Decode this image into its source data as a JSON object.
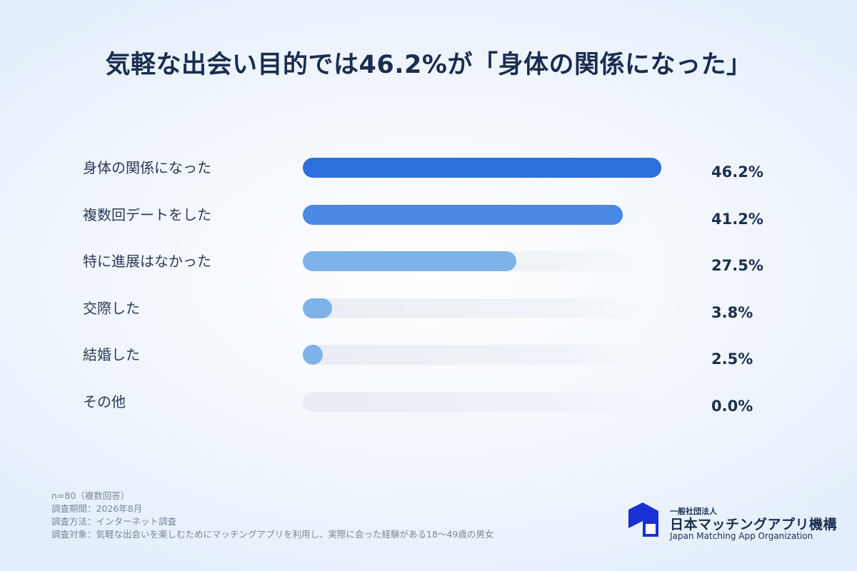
{
  "header": {
    "title": "気軽な出会い目的では46.2%が「身体の関係になった」"
  },
  "chart_data": {
    "type": "bar",
    "orientation": "horizontal",
    "title": "気軽な出会い目的では46.2%が「身体の関係になった」",
    "categories": [
      "身体の関係になった",
      "複数回デートをした",
      "特に進展はなかった",
      "交際した",
      "結婚した",
      "その他"
    ],
    "values": [
      46.2,
      41.2,
      27.5,
      3.8,
      2.5,
      0.0
    ],
    "value_labels": [
      "46.2%",
      "41.2%",
      "27.5%",
      "3.8%",
      "2.5%",
      "0.0%"
    ],
    "unit": "%",
    "xlim": [
      0,
      46.2
    ],
    "grid": false,
    "legend": "none",
    "colors": [
      "#2d6fdc",
      "#4a89e4",
      "#7db2ea",
      "#7db2ea",
      "#7db2ea",
      "#7db2ea"
    ]
  },
  "notes": [
    "n=80（複数回答）",
    "調査期間：2026年8月",
    "調査方法：インターネット調査",
    "調査対象：気軽な出会いを楽しむためにマッチングアプリを利用し、実際に会った経験がある18〜49歳の男女"
  ],
  "logo": {
    "icon": "organization-logo-mark-icon",
    "sub": "一般社団法人",
    "name": "日本マッチングアプリ機構",
    "en": "Japan Matching App Organization",
    "color": "#1a2fd6"
  }
}
